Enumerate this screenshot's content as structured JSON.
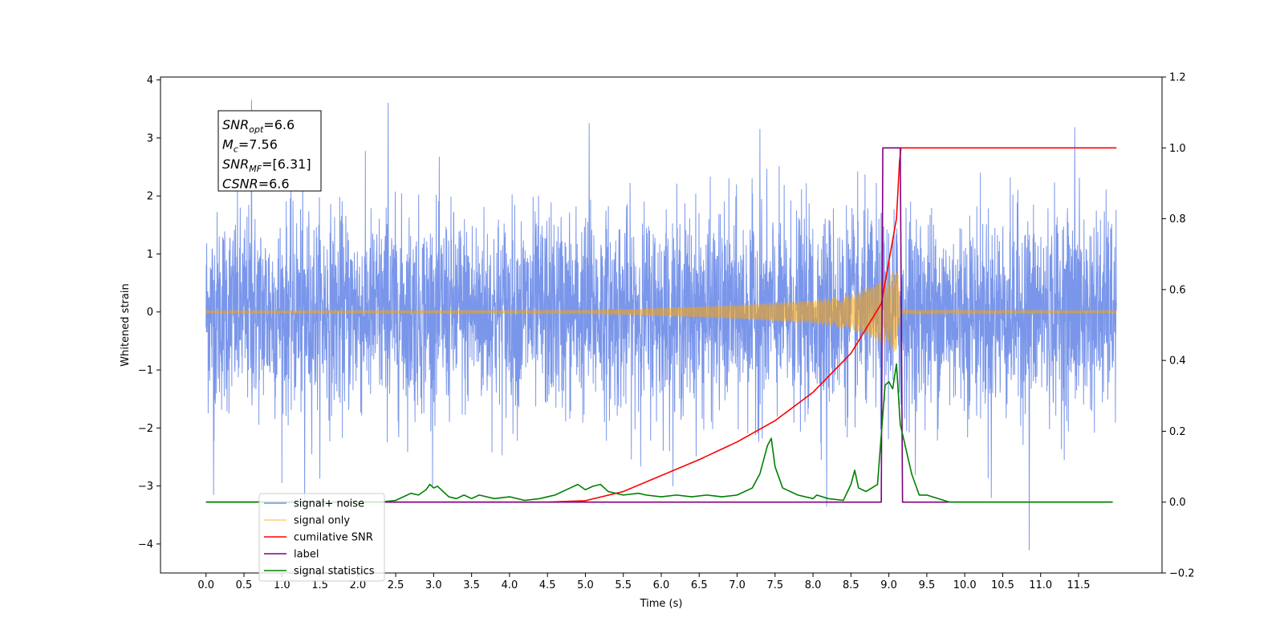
{
  "chart_data": {
    "type": "line",
    "xlabel": "Time (s)",
    "ylabel": "Whitened strain",
    "xlim": [
      -0.6,
      12.6
    ],
    "ylim": [
      -4.5,
      4.05
    ],
    "ylim_right": [
      -0.2,
      1.2
    ],
    "x_ticks": [
      0.0,
      0.5,
      1.0,
      1.5,
      2.0,
      2.5,
      3.0,
      3.5,
      4.0,
      4.5,
      5.0,
      5.5,
      6.0,
      6.5,
      7.0,
      7.5,
      8.0,
      8.5,
      9.0,
      9.5,
      10.0,
      10.5,
      11.0,
      11.5
    ],
    "x_tick_labels": [
      "0.0",
      "0.5",
      "1.0",
      "1.5",
      "2.0",
      "2.5",
      "3.0",
      "3.5",
      "4.0",
      "4.5",
      "5.0",
      "5.5",
      "6.0",
      "6.5",
      "7.0",
      "7.5",
      "8.0",
      "8.5",
      "9.0",
      "9.5",
      "10.0",
      "10.5",
      "11.0",
      "11.5"
    ],
    "y_ticks": [
      -4,
      -3,
      -2,
      -1,
      0,
      1,
      2,
      3,
      4
    ],
    "y_tick_labels": [
      "−4",
      "−3",
      "−2",
      "−1",
      "0",
      "1",
      "2",
      "3",
      "4"
    ],
    "y_right_ticks": [
      -0.2,
      0.0,
      0.2,
      0.4,
      0.6,
      0.8,
      1.0,
      1.2
    ],
    "y_right_tick_labels": [
      "−0.2",
      "0.0",
      "0.2",
      "0.4",
      "0.6",
      "0.8",
      "1.0",
      "1.2"
    ],
    "grid": false,
    "legend_position": "lower-left",
    "annotation": {
      "lines": [
        {
          "base": "SNR",
          "sub": "opt",
          "rest": "=6.6"
        },
        {
          "base": "M",
          "sub": "c",
          "rest": "=7.56"
        },
        {
          "base": "SNR",
          "sub": "MF",
          "rest": "=[6.31]"
        },
        {
          "base": "CSNR",
          "sub": "",
          "rest": "=6.6"
        }
      ]
    },
    "series": [
      {
        "name": "signal+ noise",
        "axis": "left",
        "color": "#4169e1",
        "kind": "noise",
        "x_range": [
          0.0,
          12.0
        ],
        "typical_envelope": [
          -2.2,
          2.2
        ],
        "notable_peaks": [
          [
            0.6,
            3.65
          ],
          [
            2.4,
            3.6
          ],
          [
            5.05,
            3.25
          ],
          [
            7.3,
            3.15
          ],
          [
            11.45,
            3.18
          ],
          [
            10.85,
            -4.1
          ],
          [
            8.18,
            -3.35
          ],
          [
            10.35,
            -3.2
          ],
          [
            0.1,
            -3.15
          ],
          [
            1.3,
            -3.3
          ]
        ]
      },
      {
        "name": "signal only",
        "axis": "left",
        "color": "#ffa500",
        "kind": "chirp",
        "amplitude_points": [
          [
            0.0,
            0.02
          ],
          [
            5.0,
            0.03
          ],
          [
            6.0,
            0.07
          ],
          [
            7.0,
            0.12
          ],
          [
            8.0,
            0.2
          ],
          [
            8.5,
            0.3
          ],
          [
            8.8,
            0.45
          ],
          [
            9.05,
            0.7
          ],
          [
            9.12,
            0.7
          ],
          [
            9.15,
            0.03
          ],
          [
            12.0,
            0.02
          ]
        ]
      },
      {
        "name": "cumilative SNR",
        "axis": "right",
        "color": "#ff0000",
        "x": [
          0.0,
          4.5,
          5.0,
          5.5,
          6.0,
          6.5,
          7.0,
          7.5,
          8.0,
          8.5,
          8.9,
          9.1,
          9.15,
          12.0
        ],
        "y": [
          0.0,
          0.0,
          0.004,
          0.03,
          0.075,
          0.12,
          0.17,
          0.23,
          0.31,
          0.42,
          0.56,
          0.8,
          1.0,
          1.0
        ]
      },
      {
        "name": "label",
        "axis": "right",
        "color": "#800080",
        "x": [
          0.0,
          8.9,
          8.92,
          9.15,
          9.18,
          11.95
        ],
        "y": [
          0.0,
          0.0,
          1.0,
          1.0,
          0.0,
          0.0
        ]
      },
      {
        "name": "signal statistics",
        "axis": "right",
        "color": "#008000",
        "x": [
          0.0,
          2.3,
          2.5,
          2.7,
          2.8,
          2.9,
          2.95,
          3.0,
          3.05,
          3.1,
          3.2,
          3.3,
          3.4,
          3.5,
          3.6,
          3.8,
          4.0,
          4.2,
          4.4,
          4.5,
          4.6,
          4.8,
          4.9,
          5.0,
          5.1,
          5.2,
          5.3,
          5.5,
          5.7,
          5.8,
          6.0,
          6.2,
          6.4,
          6.6,
          6.8,
          7.0,
          7.2,
          7.3,
          7.4,
          7.45,
          7.5,
          7.6,
          7.8,
          8.0,
          8.05,
          8.2,
          8.4,
          8.5,
          8.55,
          8.6,
          8.7,
          8.85,
          8.95,
          9.0,
          9.05,
          9.1,
          9.15,
          9.3,
          9.4,
          9.5,
          9.8,
          11.95
        ],
        "y": [
          0.0,
          0.0,
          0.005,
          0.025,
          0.02,
          0.035,
          0.05,
          0.04,
          0.045,
          0.035,
          0.015,
          0.01,
          0.02,
          0.01,
          0.02,
          0.01,
          0.015,
          0.005,
          0.01,
          0.015,
          0.02,
          0.04,
          0.05,
          0.035,
          0.045,
          0.05,
          0.03,
          0.02,
          0.025,
          0.02,
          0.015,
          0.02,
          0.015,
          0.02,
          0.015,
          0.02,
          0.04,
          0.08,
          0.16,
          0.18,
          0.1,
          0.04,
          0.02,
          0.01,
          0.02,
          0.01,
          0.005,
          0.05,
          0.09,
          0.04,
          0.03,
          0.05,
          0.33,
          0.34,
          0.32,
          0.39,
          0.22,
          0.08,
          0.02,
          0.02,
          0.0,
          0.0
        ]
      }
    ],
    "legend": [
      {
        "label": "signal+ noise",
        "color": "#4169e1"
      },
      {
        "label": "signal only",
        "color": "#ffa500"
      },
      {
        "label": "cumilative SNR",
        "color": "#ff0000"
      },
      {
        "label": "label",
        "color": "#800080"
      },
      {
        "label": "signal statistics",
        "color": "#008000"
      }
    ]
  }
}
